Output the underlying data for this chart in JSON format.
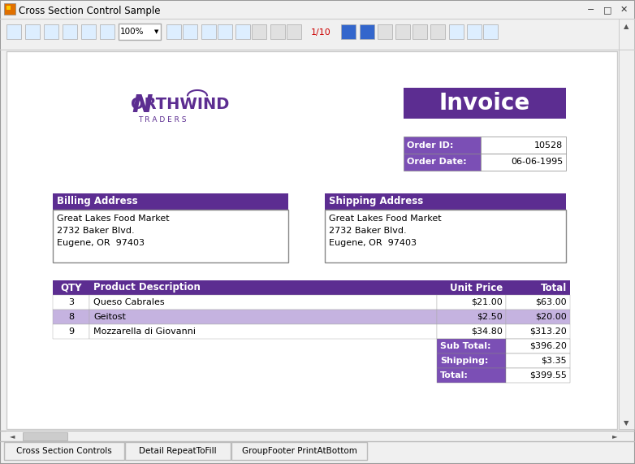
{
  "title": "Cross Section Control Sample",
  "purple_dark": "#5c2d91",
  "purple_mid": "#7b4fb5",
  "purple_light": "#c5b3e0",
  "invoice_title": "Invoice",
  "order_id_label": "Order ID:",
  "order_id_value": "10528",
  "order_date_label": "Order Date:",
  "order_date_value": "06-06-1995",
  "billing_header": "Billing Address",
  "billing_lines": [
    "Great Lakes Food Market",
    "2732 Baker Blvd.",
    "Eugene, OR  97403"
  ],
  "shipping_header": "Shipping Address",
  "shipping_lines": [
    "Great Lakes Food Market",
    "2732 Baker Blvd.",
    "Eugene, OR  97403"
  ],
  "table_headers": [
    "QTY",
    "Product Description",
    "Unit Price",
    "Total"
  ],
  "table_rows": [
    {
      "qty": "3",
      "desc": "Queso Cabrales",
      "price": "$21.00",
      "total": "$63.00",
      "highlight": false
    },
    {
      "qty": "8",
      "desc": "Geitost",
      "price": "$2.50",
      "total": "$20.00",
      "highlight": true
    },
    {
      "qty": "9",
      "desc": "Mozzarella di Giovanni",
      "price": "$34.80",
      "total": "$313.20",
      "highlight": false
    }
  ],
  "subtotal_label": "Sub Total:",
  "subtotal_value": "$396.20",
  "shipping_label": "Shipping:",
  "shipping_value": "$3.35",
  "total_label": "Total:",
  "total_value": "$399.55",
  "tab_labels": [
    "Cross Section Controls",
    "Detail RepeatToFill",
    "GroupFooter PrintAtBottom"
  ],
  "zoom_text": "100%",
  "page_text": "1/10"
}
